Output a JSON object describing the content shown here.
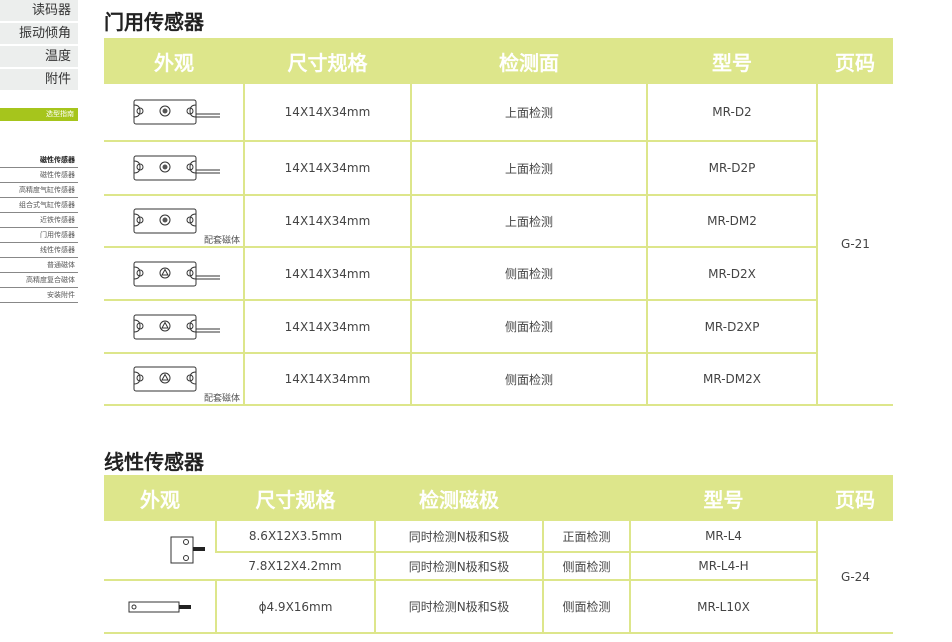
{
  "topnav": [
    "读码器",
    "振动倾角",
    "温度",
    "附件"
  ],
  "guide": "选型指南",
  "subnav": [
    "磁性传感器",
    "磁性传感器",
    "高精度气缸传感器",
    "组合式气缸传感器",
    "近铁传感器",
    "门用传感器",
    "线性传感器",
    "普通磁体",
    "高精度复合磁体",
    "安装附件"
  ],
  "colors": {
    "header": "#dde68b",
    "accent": "#a6c51c"
  },
  "door": {
    "title": "门用传感器",
    "headers": [
      "外观",
      "尺寸规格",
      "检测面",
      "型号",
      "页码"
    ],
    "note": "配套磁体",
    "rows": [
      {
        "size": "14X14X34mm",
        "face": "上面检测",
        "model": "MR-D2",
        "icon": "top-sensor-cable"
      },
      {
        "size": "14X14X34mm",
        "face": "上面检测",
        "model": "MR-D2P",
        "icon": "top-sensor-cable"
      },
      {
        "size": "14X14X34mm",
        "face": "上面检测",
        "model": "MR-DM2",
        "icon": "top-magnet"
      },
      {
        "size": "14X14X34mm",
        "face": "侧面检测",
        "model": "MR-D2X",
        "icon": "side-sensor-cable"
      },
      {
        "size": "14X14X34mm",
        "face": "侧面检测",
        "model": "MR-D2XP",
        "icon": "side-sensor-cable"
      },
      {
        "size": "14X14X34mm",
        "face": "侧面检测",
        "model": "MR-DM2X",
        "icon": "side-magnet"
      }
    ],
    "page": "G-21"
  },
  "linear": {
    "title": "线性传感器",
    "headers": [
      "外观",
      "尺寸规格",
      "检测磁极",
      "",
      "型号",
      "页码"
    ],
    "rows": [
      {
        "size": "8.6X12X3.5mm",
        "pole": "同时检测N极和S极",
        "face": "正面检测",
        "model": "MR-L4"
      },
      {
        "size": "7.8X12X4.2mm",
        "pole": "同时检测N极和S极",
        "face": "侧面检测",
        "model": "MR-L4-H"
      },
      {
        "size": "ϕ4.9X16mm",
        "pole": "同时检测N极和S极",
        "face": "侧面检测",
        "model": "MR-L10X"
      }
    ],
    "page": "G-24"
  }
}
